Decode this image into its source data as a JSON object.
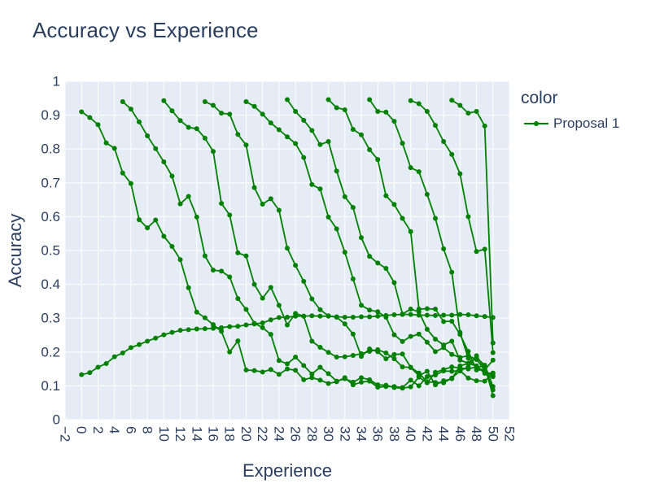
{
  "chart_data": {
    "type": "line",
    "title": "Accuracy vs Experience",
    "xlabel": "Experience",
    "ylabel": "Accuracy",
    "xlim": [
      -2,
      52
    ],
    "ylim": [
      0,
      1
    ],
    "xticks": [
      -2,
      0,
      2,
      4,
      6,
      8,
      10,
      12,
      14,
      16,
      18,
      20,
      22,
      24,
      26,
      28,
      30,
      32,
      34,
      36,
      38,
      40,
      42,
      44,
      46,
      48,
      50,
      52
    ],
    "yticks": [
      0,
      0.1,
      0.2,
      0.3,
      0.4,
      0.5,
      0.6,
      0.7,
      0.8,
      0.9,
      1
    ],
    "legend_title": "color",
    "legend_position": "right",
    "line_color": "#008000",
    "series": [
      {
        "name": "Proposal 1",
        "segments": [
          {
            "x": [
              0,
              1,
              2,
              3,
              4,
              5,
              6,
              7,
              8,
              9,
              10,
              11,
              12,
              13,
              14,
              15,
              16,
              17,
              18,
              19,
              20,
              21,
              22,
              23,
              24,
              25,
              26,
              27,
              28,
              29,
              30,
              31,
              32,
              33,
              34,
              35,
              36,
              37,
              38,
              39,
              40,
              41,
              42,
              43,
              44,
              45,
              46,
              47,
              48,
              49,
              50
            ],
            "y": [
              0.133,
              0.139,
              0.155,
              0.166,
              0.186,
              0.197,
              0.213,
              0.222,
              0.232,
              0.241,
              0.251,
              0.258,
              0.264,
              0.266,
              0.268,
              0.269,
              0.27,
              0.272,
              0.275,
              0.276,
              0.28,
              0.283,
              0.286,
              0.295,
              0.302,
              0.303,
              0.306,
              0.306,
              0.307,
              0.306,
              0.306,
              0.304,
              0.303,
              0.303,
              0.304,
              0.304,
              0.306,
              0.308,
              0.31,
              0.311,
              0.311,
              0.309,
              0.309,
              0.308,
              0.309,
              0.309,
              0.311,
              0.31,
              0.307,
              0.305,
              0.302
            ]
          },
          {
            "x": [
              0,
              1,
              2,
              3,
              4,
              5,
              6,
              7,
              8,
              9,
              10,
              11,
              12,
              13,
              14,
              15,
              16,
              17,
              18,
              19,
              20,
              21,
              22,
              23,
              24,
              25,
              26,
              27,
              28,
              29,
              30,
              31,
              32,
              33,
              34,
              35,
              36,
              37,
              38,
              39,
              40,
              41,
              42,
              43,
              44,
              45,
              46,
              47,
              48,
              49,
              50
            ],
            "y": [
              0.91,
              0.893,
              0.872,
              0.818,
              0.802,
              0.729,
              0.698,
              0.591,
              0.567,
              0.59,
              0.542,
              0.512,
              0.473,
              0.39,
              0.318,
              0.301,
              0.281,
              0.261,
              0.2,
              0.233,
              0.147,
              0.145,
              0.141,
              0.148,
              0.134,
              0.15,
              0.146,
              0.118,
              0.124,
              0.117,
              0.107,
              0.112,
              0.124,
              0.103,
              0.111,
              0.114,
              0.096,
              0.098,
              0.098,
              0.095,
              0.117,
              0.1,
              0.127,
              0.132,
              0.144,
              0.143,
              0.145,
              0.123,
              0.115,
              0.114,
              0.137
            ]
          },
          {
            "x": [
              5,
              6,
              7,
              8,
              9,
              10,
              11,
              12,
              13,
              14,
              15,
              16,
              17,
              18,
              19,
              20,
              21,
              22,
              23,
              24,
              25,
              26,
              27,
              28,
              29,
              30,
              31,
              32,
              33,
              34,
              35,
              36,
              37,
              38,
              39,
              40,
              41,
              42,
              43,
              44,
              45,
              46,
              47,
              48,
              49,
              50
            ],
            "y": [
              0.94,
              0.918,
              0.88,
              0.839,
              0.801,
              0.762,
              0.72,
              0.638,
              0.66,
              0.599,
              0.484,
              0.442,
              0.439,
              0.422,
              0.358,
              0.326,
              0.285,
              0.272,
              0.252,
              0.175,
              0.165,
              0.185,
              0.16,
              0.135,
              0.155,
              0.136,
              0.114,
              0.121,
              0.111,
              0.124,
              0.118,
              0.103,
              0.102,
              0.095,
              0.093,
              0.097,
              0.126,
              0.109,
              0.14,
              0.148,
              0.156,
              0.153,
              0.15,
              0.156,
              0.143,
              0.13
            ]
          },
          {
            "x": [
              10,
              11,
              12,
              13,
              14,
              15,
              16,
              17,
              18,
              19,
              20,
              21,
              22,
              23,
              24,
              25,
              26,
              27,
              28,
              29,
              30,
              31,
              32,
              33,
              34,
              35,
              36,
              37,
              38,
              39,
              40,
              41,
              42,
              43,
              44,
              45,
              46,
              47,
              48,
              49,
              50
            ],
            "y": [
              0.943,
              0.913,
              0.884,
              0.864,
              0.86,
              0.832,
              0.793,
              0.639,
              0.605,
              0.493,
              0.484,
              0.4,
              0.359,
              0.391,
              0.338,
              0.28,
              0.314,
              0.306,
              0.232,
              0.214,
              0.199,
              0.185,
              0.186,
              0.19,
              0.195,
              0.202,
              0.207,
              0.197,
              0.18,
              0.156,
              0.154,
              0.13,
              0.143,
              0.103,
              0.115,
              0.121,
              0.159,
              0.166,
              0.159,
              0.137,
              0.138
            ]
          },
          {
            "x": [
              15,
              16,
              17,
              18,
              19,
              20,
              21,
              22,
              23,
              24,
              25,
              26,
              27,
              28,
              29,
              30,
              31,
              32,
              33,
              34,
              35,
              36,
              37,
              38,
              39,
              40,
              41,
              42,
              43,
              44,
              45,
              46,
              47,
              48,
              49,
              50
            ],
            "y": [
              0.94,
              0.929,
              0.906,
              0.903,
              0.843,
              0.812,
              0.686,
              0.637,
              0.653,
              0.619,
              0.507,
              0.456,
              0.409,
              0.357,
              0.325,
              0.307,
              0.303,
              0.283,
              0.253,
              0.187,
              0.209,
              0.201,
              0.18,
              0.193,
              0.194,
              0.155,
              0.138,
              0.112,
              0.11,
              0.109,
              0.123,
              0.144,
              0.156,
              0.189,
              0.151,
              0.088
            ]
          },
          {
            "x": [
              20,
              21,
              22,
              23,
              24,
              25,
              26,
              27,
              28,
              29,
              30,
              31,
              32,
              33,
              34,
              35,
              36,
              37,
              38,
              39,
              40,
              41,
              42,
              43,
              44,
              45,
              46,
              47,
              48,
              49,
              50
            ],
            "y": [
              0.94,
              0.926,
              0.903,
              0.877,
              0.857,
              0.836,
              0.816,
              0.775,
              0.695,
              0.682,
              0.599,
              0.564,
              0.495,
              0.416,
              0.338,
              0.324,
              0.319,
              0.303,
              0.251,
              0.231,
              0.246,
              0.253,
              0.229,
              0.201,
              0.213,
              0.193,
              0.184,
              0.189,
              0.178,
              0.146,
              0.127
            ]
          },
          {
            "x": [
              25,
              26,
              27,
              28,
              29,
              30,
              31,
              32,
              33,
              34,
              35,
              36,
              37,
              38,
              39,
              40,
              41,
              42,
              43,
              44,
              45,
              46,
              47,
              48,
              49,
              50
            ],
            "y": [
              0.946,
              0.911,
              0.885,
              0.855,
              0.813,
              0.822,
              0.735,
              0.659,
              0.627,
              0.538,
              0.483,
              0.463,
              0.447,
              0.405,
              0.312,
              0.327,
              0.319,
              0.267,
              0.238,
              0.221,
              0.232,
              0.176,
              0.167,
              0.183,
              0.161,
              0.098
            ]
          },
          {
            "x": [
              30,
              31,
              32,
              33,
              34,
              35,
              36,
              37,
              38,
              39,
              40,
              41,
              42,
              43,
              44,
              45,
              46,
              47,
              48,
              49,
              50
            ],
            "y": [
              0.946,
              0.922,
              0.916,
              0.858,
              0.842,
              0.798,
              0.769,
              0.662,
              0.636,
              0.595,
              0.556,
              0.327,
              0.328,
              0.327,
              0.29,
              0.291,
              0.252,
              0.202,
              0.147,
              0.147,
              0.176
            ]
          },
          {
            "x": [
              35,
              36,
              37,
              38,
              39,
              40,
              41,
              42,
              43,
              44,
              45,
              46,
              47,
              48,
              49,
              50
            ],
            "y": [
              0.946,
              0.911,
              0.909,
              0.882,
              0.817,
              0.745,
              0.733,
              0.666,
              0.595,
              0.505,
              0.436,
              0.258,
              0.182,
              0.156,
              0.158,
              0.071
            ]
          },
          {
            "x": [
              40,
              41,
              42,
              43,
              44,
              45,
              46,
              47,
              48,
              49,
              50
            ],
            "y": [
              0.943,
              0.934,
              0.911,
              0.87,
              0.822,
              0.784,
              0.727,
              0.6,
              0.497,
              0.504,
              0.198
            ]
          },
          {
            "x": [
              45,
              46,
              47,
              48,
              49,
              50
            ],
            "y": [
              0.944,
              0.929,
              0.906,
              0.911,
              0.868,
              0.227
            ]
          }
        ]
      }
    ]
  }
}
